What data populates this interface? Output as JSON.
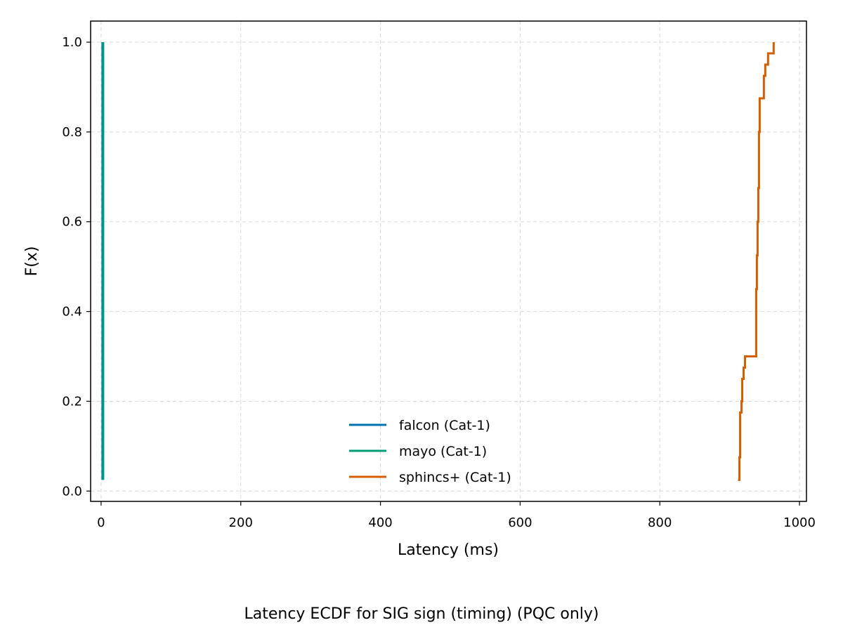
{
  "chart_data": {
    "type": "line",
    "title": "Latency ECDF for SIG sign (timing) (PQC only)",
    "xlabel": "Latency (ms)",
    "ylabel": "F(x)",
    "xlim": [
      -15,
      1010
    ],
    "ylim": [
      -0.023,
      1.047
    ],
    "xticks": [
      0,
      200,
      400,
      600,
      800,
      1000
    ],
    "yticks": [
      0.0,
      0.2,
      0.4,
      0.6,
      0.8,
      1.0
    ],
    "grid": true,
    "legend_position": "lower center",
    "series": [
      {
        "name": "falcon (Cat-1)",
        "color": "#0072B2",
        "x": [
          2,
          2
        ],
        "y": [
          0.025,
          1.0
        ]
      },
      {
        "name": "mayo (Cat-1)",
        "color": "#009E73",
        "x": [
          3,
          3
        ],
        "y": [
          0.025,
          1.0
        ]
      },
      {
        "name": "sphincs+ (Cat-1)",
        "color": "#D55E00",
        "x": [
          912,
          914,
          915,
          917,
          918,
          920,
          922,
          938,
          939,
          940,
          941,
          942,
          943,
          949,
          951,
          955,
          963
        ],
        "y": [
          0.025,
          0.075,
          0.175,
          0.2,
          0.25,
          0.275,
          0.3,
          0.45,
          0.525,
          0.6,
          0.675,
          0.8,
          0.875,
          0.925,
          0.95,
          0.975,
          1.0
        ]
      }
    ]
  }
}
